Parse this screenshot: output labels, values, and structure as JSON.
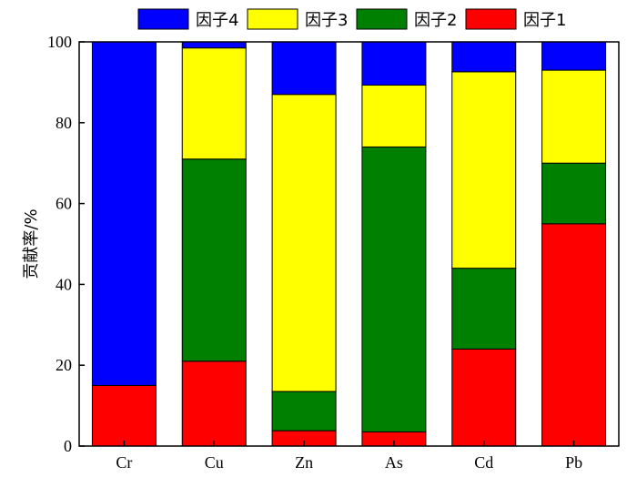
{
  "chart_data": {
    "type": "bar",
    "stacked": true,
    "categories": [
      "Cr",
      "Cu",
      "Zn",
      "As",
      "Cd",
      "Pb"
    ],
    "series": [
      {
        "name": "因子1",
        "color": "#ff0000",
        "values": [
          15.0,
          21.0,
          3.8,
          3.5,
          24.0,
          55.0
        ]
      },
      {
        "name": "因子2",
        "color": "#008000",
        "values": [
          0.0,
          50.0,
          9.7,
          70.5,
          20.0,
          15.0
        ]
      },
      {
        "name": "因子3",
        "color": "#ffff00",
        "values": [
          0.0,
          27.5,
          73.5,
          15.3,
          48.6,
          23.0
        ]
      },
      {
        "name": "因子4",
        "color": "#0000ff",
        "values": [
          85.0,
          1.5,
          13.0,
          10.7,
          7.4,
          7.0
        ]
      }
    ],
    "legend_order": [
      "因子4",
      "因子3",
      "因子2",
      "因子1"
    ],
    "legend_position": "top",
    "ylabel": "贡献率/%",
    "xlabel": "",
    "ylim": [
      0,
      100
    ],
    "yticks": [
      0,
      20,
      40,
      60,
      80,
      100
    ],
    "grid": false
  }
}
